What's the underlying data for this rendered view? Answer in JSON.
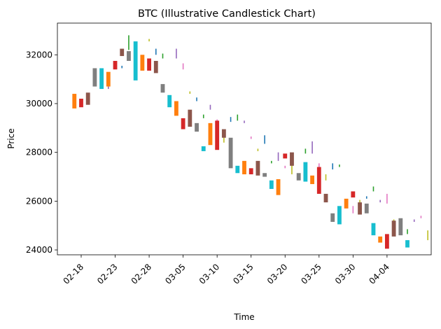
{
  "chart_data": {
    "type": "candlestick",
    "title": "BTC (Illustrative Candlestick Chart)",
    "xlabel": "Time",
    "ylabel": "Price",
    "ylim": [
      23800,
      33300
    ],
    "yticks": [
      24000,
      26000,
      28000,
      30000,
      32000
    ],
    "ytick_labels": [
      "24000",
      "26000",
      "28000",
      "30000",
      "32000"
    ],
    "xticks": [
      {
        "pos": 1,
        "label": "02-18"
      },
      {
        "pos": 6,
        "label": "02-23"
      },
      {
        "pos": 11,
        "label": "02-28"
      },
      {
        "pos": 16,
        "label": "03-05"
      },
      {
        "pos": 21,
        "label": "03-10"
      },
      {
        "pos": 26,
        "label": "03-15"
      },
      {
        "pos": 31,
        "label": "03-20"
      },
      {
        "pos": 36,
        "label": "03-25"
      },
      {
        "pos": 41,
        "label": "03-30"
      },
      {
        "pos": 46,
        "label": "04-04"
      }
    ],
    "xlim": [
      -2.5,
      52.5
    ],
    "colors": [
      "#1f77b4",
      "#ff7f0e",
      "#2ca02c",
      "#d62728",
      "#9467bd",
      "#8c564b",
      "#e377c2",
      "#7f7f7f",
      "#bcbd22",
      "#17becf"
    ],
    "candles": [
      {
        "open": 29800,
        "close": 30400,
        "color": "#ff7f0e"
      },
      {
        "open": 30200,
        "close": 29850,
        "color": "#d62728"
      },
      {
        "open": 29950,
        "close": 30450,
        "color": "#8c564b"
      },
      {
        "open": 30700,
        "close": 31450,
        "color": "#7f7f7f"
      },
      {
        "open": 31450,
        "close": 30600,
        "color": "#17becf"
      },
      {
        "open": 30700,
        "close": 31300,
        "color": "#ff7f0e"
      },
      {
        "open": 31400,
        "close": 31750,
        "color": "#d62728"
      },
      {
        "open": 32250,
        "close": 31950,
        "color": "#8c564b"
      },
      {
        "open": 31750,
        "close": 32150,
        "color": "#7f7f7f"
      },
      {
        "open": 32550,
        "close": 30950,
        "color": "#17becf"
      },
      {
        "open": 31350,
        "close": 32000,
        "color": "#ff7f0e"
      },
      {
        "open": 31850,
        "close": 31350,
        "color": "#d62728"
      },
      {
        "open": 31750,
        "close": 31250,
        "color": "#8c564b"
      },
      {
        "open": 30450,
        "close": 30800,
        "color": "#7f7f7f"
      },
      {
        "open": 30350,
        "close": 29850,
        "color": "#17becf"
      },
      {
        "open": 30100,
        "close": 29500,
        "color": "#ff7f0e"
      },
      {
        "open": 28950,
        "close": 29400,
        "color": "#d62728"
      },
      {
        "open": 29050,
        "close": 29750,
        "color": "#8c564b"
      },
      {
        "open": 29200,
        "close": 28850,
        "color": "#7f7f7f"
      },
      {
        "open": 28050,
        "close": 28250,
        "color": "#17becf"
      },
      {
        "open": 29200,
        "close": 28300,
        "color": "#ff7f0e"
      },
      {
        "open": 28100,
        "close": 29300,
        "color": "#d62728"
      },
      {
        "open": 28600,
        "close": 28950,
        "color": "#8c564b"
      },
      {
        "open": 28600,
        "close": 27350,
        "color": "#7f7f7f"
      },
      {
        "open": 27450,
        "close": 27150,
        "color": "#17becf"
      },
      {
        "open": 27650,
        "close": 27100,
        "color": "#ff7f0e"
      },
      {
        "open": 27100,
        "close": 27350,
        "color": "#d62728"
      },
      {
        "open": 27650,
        "close": 27050,
        "color": "#8c564b"
      },
      {
        "open": 27150,
        "close": 27000,
        "color": "#7f7f7f"
      },
      {
        "open": 26850,
        "close": 26500,
        "color": "#17becf"
      },
      {
        "open": 26900,
        "close": 26250,
        "color": "#ff7f0e"
      },
      {
        "open": 27950,
        "close": 27750,
        "color": "#d62728"
      },
      {
        "open": 28000,
        "close": 27450,
        "color": "#8c564b"
      },
      {
        "open": 26850,
        "close": 27150,
        "color": "#7f7f7f"
      },
      {
        "open": 27600,
        "close": 26800,
        "color": "#17becf"
      },
      {
        "open": 27050,
        "close": 26700,
        "color": "#ff7f0e"
      },
      {
        "open": 27400,
        "close": 26300,
        "color": "#d62728"
      },
      {
        "open": 26300,
        "close": 25950,
        "color": "#8c564b"
      },
      {
        "open": 25500,
        "close": 25150,
        "color": "#7f7f7f"
      },
      {
        "open": 25800,
        "close": 25050,
        "color": "#17becf"
      },
      {
        "open": 25700,
        "close": 26100,
        "color": "#ff7f0e"
      },
      {
        "open": 26400,
        "close": 26150,
        "color": "#d62728"
      },
      {
        "open": 25450,
        "close": 25950,
        "color": "#8c564b"
      },
      {
        "open": 25900,
        "close": 25500,
        "color": "#7f7f7f"
      },
      {
        "open": 25100,
        "close": 24600,
        "color": "#17becf"
      },
      {
        "open": 24300,
        "close": 24550,
        "color": "#ff7f0e"
      },
      {
        "open": 24050,
        "close": 24650,
        "color": "#d62728"
      },
      {
        "open": 25200,
        "close": 24550,
        "color": "#8c564b"
      },
      {
        "open": 24600,
        "close": 25300,
        "color": "#7f7f7f"
      },
      {
        "open": 24100,
        "close": 24400,
        "color": "#17becf"
      }
    ],
    "wicks": [
      {
        "x": 5,
        "low": 30600,
        "high": 30700,
        "color": "#9467bd"
      },
      {
        "x": 7,
        "low": 31450,
        "high": 31550,
        "color": "#1f77b4"
      },
      {
        "x": 8,
        "low": 32200,
        "high": 32800,
        "color": "#2ca02c"
      },
      {
        "x": 9,
        "low": 32250,
        "high": 32400,
        "color": "#e377c2"
      },
      {
        "x": 11,
        "low": 32550,
        "high": 32650,
        "color": "#bcbd22"
      },
      {
        "x": 12,
        "low": 32000,
        "high": 32250,
        "color": "#1f77b4"
      },
      {
        "x": 13,
        "low": 31850,
        "high": 32050,
        "color": "#2ca02c"
      },
      {
        "x": 15,
        "low": 31850,
        "high": 32250,
        "color": "#9467bd"
      },
      {
        "x": 16,
        "low": 31400,
        "high": 31650,
        "color": "#e377c2"
      },
      {
        "x": 17,
        "low": 30400,
        "high": 30500,
        "color": "#bcbd22"
      },
      {
        "x": 18,
        "low": 30100,
        "high": 30250,
        "color": "#1f77b4"
      },
      {
        "x": 19,
        "low": 29400,
        "high": 29550,
        "color": "#2ca02c"
      },
      {
        "x": 20,
        "low": 29750,
        "high": 29950,
        "color": "#9467bd"
      },
      {
        "x": 21,
        "low": 29250,
        "high": 29350,
        "color": "#e377c2"
      },
      {
        "x": 22,
        "low": 28400,
        "high": 28650,
        "color": "#bcbd22"
      },
      {
        "x": 23,
        "low": 29250,
        "high": 29450,
        "color": "#1f77b4"
      },
      {
        "x": 24,
        "low": 29300,
        "high": 29550,
        "color": "#2ca02c"
      },
      {
        "x": 25,
        "low": 29200,
        "high": 29300,
        "color": "#9467bd"
      },
      {
        "x": 26,
        "low": 28550,
        "high": 28650,
        "color": "#e377c2"
      },
      {
        "x": 27,
        "low": 28050,
        "high": 28150,
        "color": "#bcbd22"
      },
      {
        "x": 28,
        "low": 28350,
        "high": 28700,
        "color": "#1f77b4"
      },
      {
        "x": 29,
        "low": 27550,
        "high": 27650,
        "color": "#2ca02c"
      },
      {
        "x": 30,
        "low": 27650,
        "high": 28000,
        "color": "#9467bd"
      },
      {
        "x": 31,
        "low": 27350,
        "high": 27450,
        "color": "#e377c2"
      },
      {
        "x": 32,
        "low": 27100,
        "high": 27900,
        "color": "#bcbd22"
      },
      {
        "x": 33,
        "low": 26950,
        "high": 27050,
        "color": "#1f77b4"
      },
      {
        "x": 34,
        "low": 27950,
        "high": 28150,
        "color": "#2ca02c"
      },
      {
        "x": 35,
        "low": 27950,
        "high": 28450,
        "color": "#9467bd"
      },
      {
        "x": 36,
        "low": 27350,
        "high": 27550,
        "color": "#e377c2"
      },
      {
        "x": 37,
        "low": 26850,
        "high": 27100,
        "color": "#bcbd22"
      },
      {
        "x": 38,
        "low": 27300,
        "high": 27550,
        "color": "#1f77b4"
      },
      {
        "x": 39,
        "low": 27400,
        "high": 27500,
        "color": "#2ca02c"
      },
      {
        "x": 40,
        "low": 25950,
        "high": 26050,
        "color": "#9467bd"
      },
      {
        "x": 41,
        "low": 25500,
        "high": 25800,
        "color": "#e377c2"
      },
      {
        "x": 42,
        "low": 25800,
        "high": 26050,
        "color": "#bcbd22"
      },
      {
        "x": 43,
        "low": 26100,
        "high": 26200,
        "color": "#1f77b4"
      },
      {
        "x": 44,
        "low": 26400,
        "high": 26600,
        "color": "#2ca02c"
      },
      {
        "x": 45,
        "low": 25950,
        "high": 26050,
        "color": "#9467bd"
      },
      {
        "x": 46,
        "low": 25900,
        "high": 26300,
        "color": "#e377c2"
      },
      {
        "x": 47,
        "low": 25100,
        "high": 25250,
        "color": "#bcbd22"
      },
      {
        "x": 48,
        "low": 24850,
        "high": 24950,
        "color": "#1f77b4"
      },
      {
        "x": 49,
        "low": 24650,
        "high": 24850,
        "color": "#2ca02c"
      },
      {
        "x": 50,
        "low": 25150,
        "high": 25250,
        "color": "#9467bd"
      },
      {
        "x": 51,
        "low": 25300,
        "high": 25400,
        "color": "#e377c2"
      },
      {
        "x": 52,
        "low": 24400,
        "high": 24800,
        "color": "#bcbd22"
      }
    ]
  }
}
